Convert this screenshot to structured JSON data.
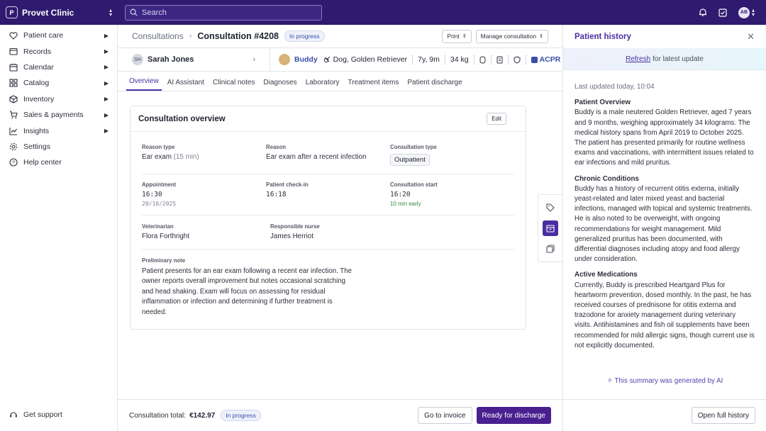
{
  "topbar": {
    "clinic_initial": "P",
    "clinic_name": "Provet Clinic",
    "search_placeholder": "Search",
    "avatar": "AB"
  },
  "sidebar": {
    "items": [
      {
        "label": "Patient care",
        "icon": "heart-icon"
      },
      {
        "label": "Records",
        "icon": "records-icon"
      },
      {
        "label": "Calendar",
        "icon": "calendar-icon"
      },
      {
        "label": "Catalog",
        "icon": "catalog-icon"
      },
      {
        "label": "Inventory",
        "icon": "inventory-icon"
      },
      {
        "label": "Sales & payments",
        "icon": "sales-icon"
      },
      {
        "label": "Insights",
        "icon": "insights-icon"
      },
      {
        "label": "Settings",
        "icon": "gear-icon"
      },
      {
        "label": "Help center",
        "icon": "help-icon"
      }
    ],
    "support": "Get support"
  },
  "breadcrumb": {
    "parent": "Consultations",
    "current": "Consultation #4208",
    "status": "In progress",
    "print": "Print",
    "manage": "Manage consultation"
  },
  "patient": {
    "owner_initials": "SH",
    "owner": "Sarah Jones",
    "pet_name": "Buddy",
    "species": "Dog, Golden Retriever",
    "age": "7y, 9m",
    "weight": "34 kg",
    "tag": "ACPR"
  },
  "tabs": [
    "Overview",
    "AI Assistant",
    "Clinical notes",
    "Diagnoses",
    "Laboratory",
    "Treatment items",
    "Patient discharge"
  ],
  "overview": {
    "title": "Consultation overview",
    "edit": "Edit",
    "reason_type_label": "Reason type",
    "reason_type": "Ear exam",
    "reason_type_dur": "(15 min)",
    "reason_label": "Reason",
    "reason": "Ear exam after a recent infection",
    "ctype_label": "Consultation type",
    "ctype": "Outpatient",
    "appt_label": "Appointment",
    "appt_time": "16:30",
    "appt_date": "20/10/2025",
    "checkin_label": "Patient check-in",
    "checkin": "16:18",
    "cstart_label": "Consultation start",
    "cstart": "16:20",
    "early": "10 min early",
    "vet_label": "Veterinarian",
    "vet": "Flora Forthright",
    "nurse_label": "Responsible nurse",
    "nurse": "James Herriot",
    "note_label": "Preliminary note",
    "note": "Patient presents for an ear exam following a recent ear infection. The owner reports overall improvement but notes occasional scratching and head shaking. Exam will focus on assessing for residual inflammation or infection and determining if further treatment is needed."
  },
  "footer": {
    "total_label": "Consultation total:",
    "total": "€142.97",
    "status": "In progress",
    "invoice": "Go to invoice",
    "discharge": "Ready for discharge"
  },
  "history": {
    "title": "Patient history",
    "refresh_link": "Refresh",
    "refresh_rest": "for latest update",
    "updated": "Last updated today, 10:04",
    "s1_title": "Patient Overview",
    "s1": "Buddy is a male neutered Golden Retriever, aged 7 years and 9 months, weighing approximately 34 kilograms. The medical history spans from April 2019 to October 2025. The patient has presented primarily for routine wellness exams and vaccinations, with intermittent issues related to ear infections and mild pruritus.",
    "s2_title": "Chronic Conditions",
    "s2": "Buddy has a history of recurrent otitis externa, initially yeast-related and later mixed yeast and bacterial infections, managed with topical and systemic treatments. He is also noted to be overweight, with ongoing recommendations for weight management. Mild generalized pruritus has been documented, with differential diagnoses including atopy and food allergy under consideration.",
    "s3_title": "Active Medications",
    "s3": "Currently, Buddy is prescribed Heartgard Plus for heartworm prevention, dosed monthly. In the past, he has received courses of prednisone for otitis externa and trazodone for anxiety management during veterinary visits. Antihistamines and fish oil supplements have been recommended for mild allergic signs, though current use is not explicitly documented.",
    "ai_note": "This summary was generated by AI",
    "open_full": "Open full history"
  }
}
